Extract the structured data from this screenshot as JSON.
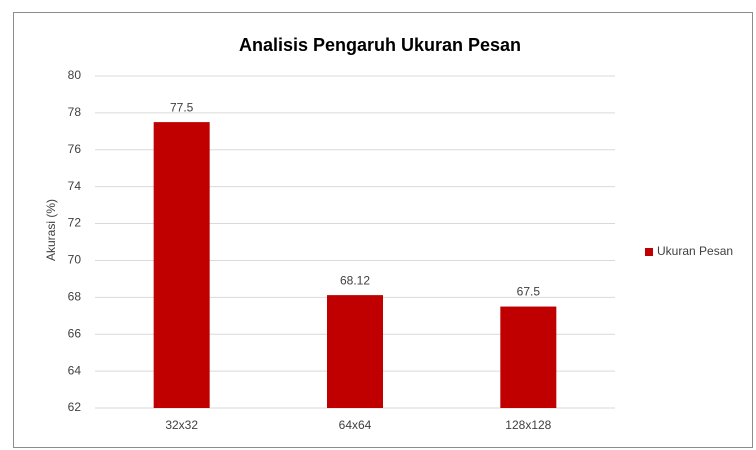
{
  "chart_data": {
    "type": "bar",
    "title": "Analisis Pengaruh Ukuran Pesan",
    "y_label": "Akurasi (%)",
    "categories": [
      "32x32",
      "64x64",
      "128x128"
    ],
    "series": [
      {
        "name": "Ukuran Pesan",
        "color": "#c00000",
        "values": [
          77.5,
          68.12,
          67.5
        ]
      }
    ],
    "ylim": [
      62,
      80
    ],
    "yticks": [
      62,
      64,
      66,
      68,
      70,
      72,
      74,
      76,
      78,
      80
    ],
    "grid": true,
    "legend": "right"
  }
}
